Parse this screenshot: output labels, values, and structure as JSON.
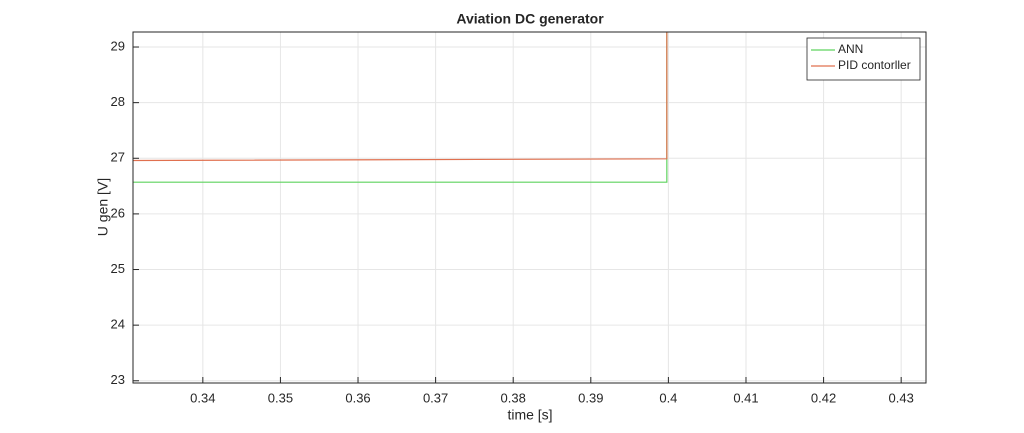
{
  "chart_data": {
    "type": "line",
    "title": "Aviation DC generator",
    "x_label": "time [s]",
    "y_label": "U gen [V]",
    "series": [
      {
        "name": "ANN",
        "color": "#5fd35f",
        "x": [
          0.331,
          0.3998,
          0.3998
        ],
        "values": [
          26.57,
          26.57,
          29.5
        ]
      },
      {
        "name": "PID contorller",
        "color": "#e0704f",
        "x": [
          0.331,
          0.3998,
          0.3998
        ],
        "values": [
          26.96,
          26.99,
          29.5
        ]
      }
    ],
    "xlim": [
      0.331,
      0.4332
    ],
    "xticks": [
      0.34,
      0.35,
      0.36,
      0.37,
      0.38,
      0.39,
      0.4,
      0.41,
      0.42,
      0.43
    ],
    "ylim": [
      22.96,
      29.27
    ],
    "yticks": [
      23,
      24,
      25,
      26,
      27,
      28,
      29
    ],
    "grid": true,
    "legend": "northeast"
  }
}
